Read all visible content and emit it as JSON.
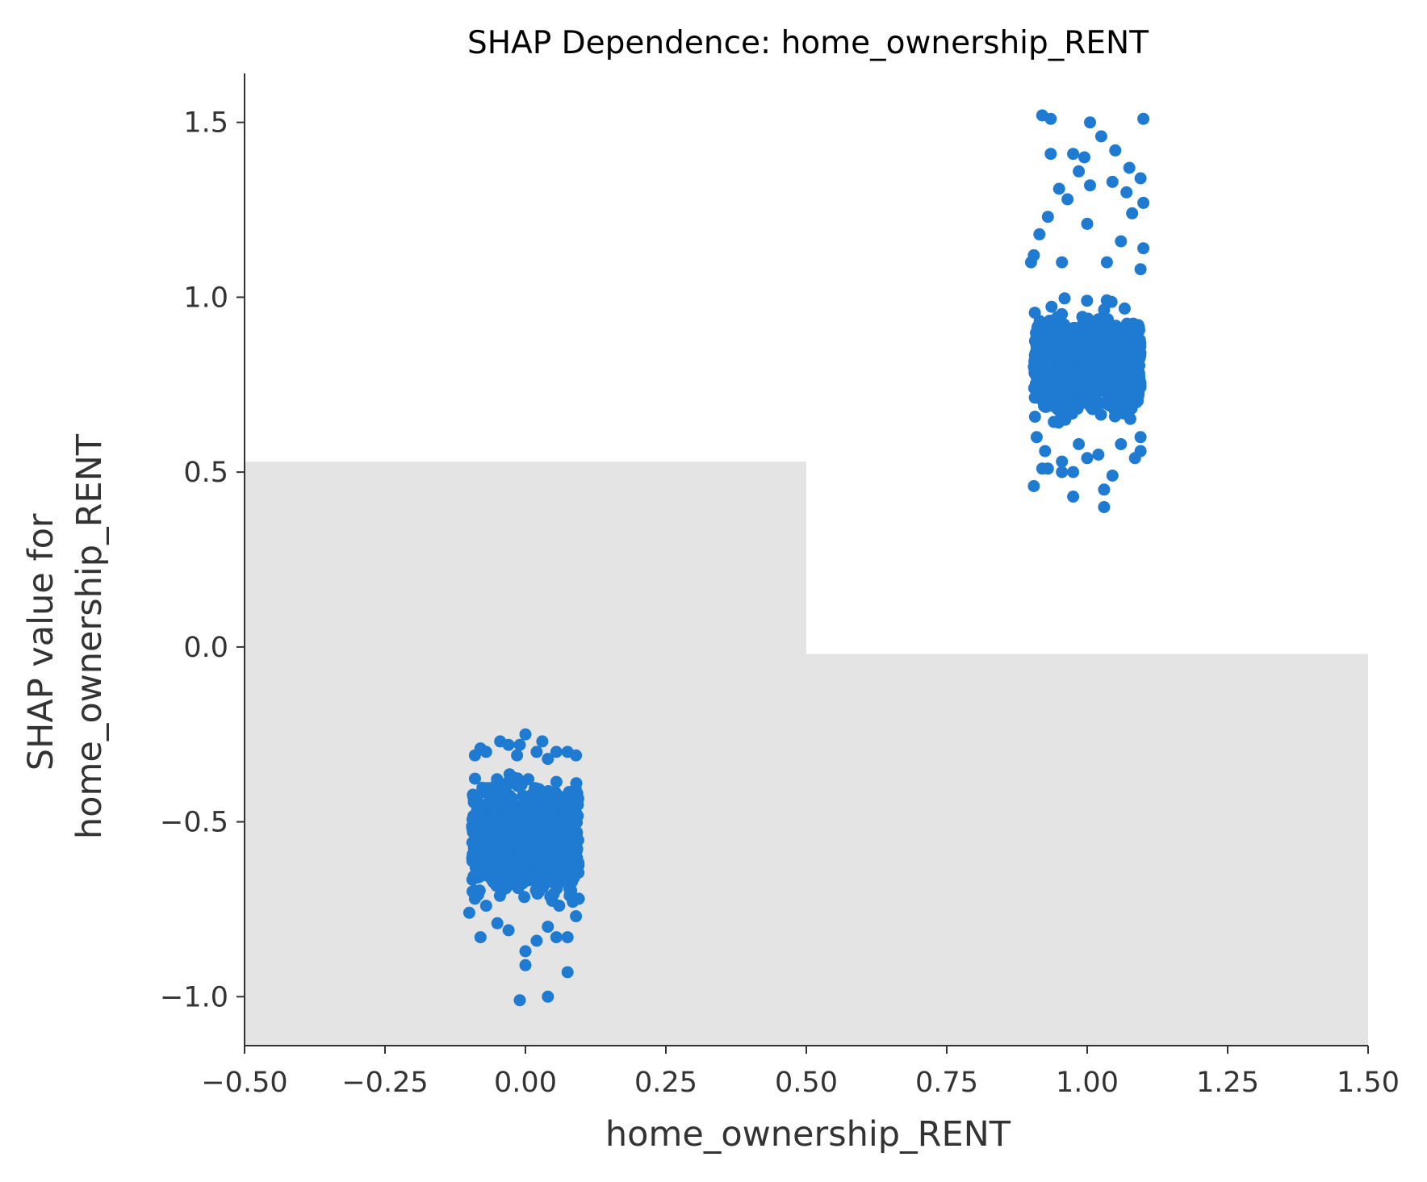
{
  "chart_data": {
    "type": "scatter",
    "title": "SHAP Dependence: home_ownership_RENT",
    "xlabel": "home_ownership_RENT",
    "ylabel": [
      "SHAP value for",
      "home_ownership_RENT"
    ],
    "xlim": [
      -0.5,
      1.5
    ],
    "ylim": [
      -1.14,
      1.64
    ],
    "x_ticks": [
      -0.5,
      -0.25,
      0.0,
      0.25,
      0.5,
      0.75,
      1.0,
      1.25,
      1.5
    ],
    "x_tick_labels": [
      "−0.50",
      "−0.25",
      "0.00",
      "0.25",
      "0.50",
      "0.75",
      "1.00",
      "1.25",
      "1.50"
    ],
    "y_ticks": [
      -1.0,
      -0.5,
      0.0,
      0.5,
      1.0,
      1.5
    ],
    "y_tick_labels": [
      "−1.0",
      "−0.5",
      "0.0",
      "0.5",
      "1.0",
      "1.5"
    ],
    "grid": false,
    "point_color": "#1e7bd1",
    "background_bars": [
      {
        "x_start": -0.5,
        "x_end": 0.5,
        "y_top": 0.53,
        "color": "#e4e4e4"
      },
      {
        "x_start": 0.5,
        "x_end": 1.5,
        "y_top": -0.02,
        "color": "#e4e4e4"
      }
    ],
    "series": [
      {
        "x_center": 0.0,
        "x_jitter": 0.1,
        "y_core": [
          -0.78,
          -0.32
        ],
        "points": [
          [
            -0.01,
            -1.01
          ],
          [
            0.04,
            -1.0
          ],
          [
            0.075,
            -0.93
          ],
          [
            0.0,
            -0.91
          ],
          [
            0.0,
            -0.87
          ],
          [
            -0.08,
            -0.83
          ],
          [
            0.02,
            -0.84
          ],
          [
            0.055,
            -0.83
          ],
          [
            0.075,
            -0.83
          ],
          [
            -0.03,
            -0.81
          ],
          [
            -0.05,
            -0.79
          ],
          [
            0.04,
            -0.8
          ],
          [
            -0.1,
            -0.76
          ],
          [
            0.09,
            -0.77
          ],
          [
            -0.07,
            -0.74
          ],
          [
            0.06,
            -0.74
          ],
          [
            -0.09,
            -0.72
          ],
          [
            0.095,
            -0.72
          ],
          [
            -0.09,
            -0.31
          ],
          [
            -0.08,
            -0.29
          ],
          [
            -0.07,
            -0.3
          ],
          [
            -0.045,
            -0.27
          ],
          [
            -0.03,
            -0.28
          ],
          [
            -0.01,
            -0.28
          ],
          [
            0.0,
            -0.25
          ],
          [
            0.02,
            -0.3
          ],
          [
            0.03,
            -0.27
          ],
          [
            0.055,
            -0.3
          ],
          [
            0.075,
            -0.3
          ],
          [
            0.09,
            -0.31
          ],
          [
            -0.015,
            -0.31
          ],
          [
            0.04,
            -0.32
          ]
        ]
      },
      {
        "x_center": 1.0,
        "x_jitter": 0.1,
        "y_core": [
          0.6,
          1.02
        ],
        "points": [
          [
            0.92,
            1.52
          ],
          [
            0.935,
            1.51
          ],
          [
            1.005,
            1.5
          ],
          [
            1.1,
            1.51
          ],
          [
            1.025,
            1.46
          ],
          [
            1.05,
            1.42
          ],
          [
            0.935,
            1.41
          ],
          [
            0.975,
            1.41
          ],
          [
            0.995,
            1.4
          ],
          [
            1.075,
            1.37
          ],
          [
            0.985,
            1.36
          ],
          [
            1.095,
            1.34
          ],
          [
            0.95,
            1.31
          ],
          [
            1.005,
            1.32
          ],
          [
            1.045,
            1.33
          ],
          [
            1.07,
            1.3
          ],
          [
            0.965,
            1.28
          ],
          [
            1.1,
            1.27
          ],
          [
            0.93,
            1.23
          ],
          [
            1.0,
            1.21
          ],
          [
            1.08,
            1.24
          ],
          [
            0.915,
            1.18
          ],
          [
            1.06,
            1.16
          ],
          [
            0.905,
            1.12
          ],
          [
            1.1,
            1.14
          ],
          [
            0.9,
            1.1
          ],
          [
            1.095,
            1.08
          ],
          [
            0.955,
            1.1
          ],
          [
            1.035,
            1.1
          ],
          [
            0.925,
            0.56
          ],
          [
            0.92,
            0.51
          ],
          [
            0.93,
            0.51
          ],
          [
            0.905,
            0.46
          ],
          [
            0.955,
            0.53
          ],
          [
            0.955,
            0.5
          ],
          [
            0.975,
            0.5
          ],
          [
            0.975,
            0.43
          ],
          [
            1.0,
            0.54
          ],
          [
            1.03,
            0.45
          ],
          [
            1.045,
            0.49
          ],
          [
            1.03,
            0.4
          ],
          [
            1.02,
            0.55
          ],
          [
            1.085,
            0.54
          ],
          [
            1.095,
            0.56
          ],
          [
            1.06,
            0.58
          ],
          [
            0.985,
            0.58
          ],
          [
            0.91,
            0.6
          ],
          [
            1.095,
            0.6
          ]
        ]
      }
    ]
  }
}
